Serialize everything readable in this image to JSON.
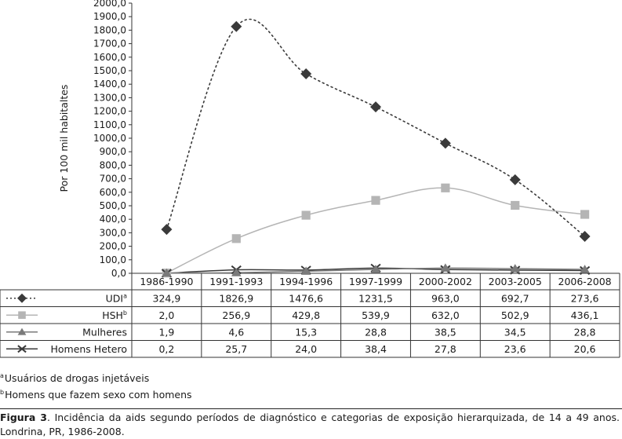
{
  "chart_data": {
    "type": "line",
    "ylabel": "Por 100 mil habitaltes",
    "ylim": [
      0,
      2000
    ],
    "yticks": [
      "0,0",
      "100,0",
      "200,0",
      "300,0",
      "400,0",
      "500,0",
      "600,0",
      "700,0",
      "800,0",
      "900,0",
      "1000,0",
      "1100,0",
      "1200,0",
      "1300,0",
      "1400,0",
      "1500,0",
      "1600,0",
      "1700,0",
      "1800,0",
      "1900,0",
      "2000,0"
    ],
    "categories": [
      "1986-1990",
      "1991-1993",
      "1994-1996",
      "1997-1999",
      "2000-2002",
      "2003-2005",
      "2006-2008"
    ],
    "series": [
      {
        "name": "UDI",
        "superscript": "a",
        "values": [
          324.9,
          1826.9,
          1476.6,
          1231.5,
          963.0,
          692.7,
          273.6
        ],
        "labels": [
          "324,9",
          "1826,9",
          "1476,6",
          "1231,5",
          "963,0",
          "692,7",
          "273,6"
        ],
        "color": "#3a3a3a",
        "line": "dotted",
        "marker": "diamond"
      },
      {
        "name": "HSH",
        "superscript": "b",
        "values": [
          2.0,
          256.9,
          429.8,
          539.9,
          632.0,
          502.9,
          436.1
        ],
        "labels": [
          "2,0",
          "256,9",
          "429,8",
          "539,9",
          "632,0",
          "502,9",
          "436,1"
        ],
        "color": "#b5b5b5",
        "line": "solid",
        "marker": "square"
      },
      {
        "name": "Mulheres",
        "superscript": "",
        "values": [
          1.9,
          4.6,
          15.3,
          28.8,
          38.5,
          34.5,
          28.8
        ],
        "labels": [
          "1,9",
          "4,6",
          "15,3",
          "28,8",
          "38,5",
          "34,5",
          "28,8"
        ],
        "color": "#7a7a7a",
        "line": "solid",
        "marker": "triangle"
      },
      {
        "name": "Homens Hetero",
        "superscript": "",
        "values": [
          0.2,
          25.7,
          24.0,
          38.4,
          27.8,
          23.6,
          20.6
        ],
        "labels": [
          "0,2",
          "25,7",
          "24,0",
          "38,4",
          "27,8",
          "23,6",
          "20,6"
        ],
        "color": "#3a3a3a",
        "line": "solid",
        "marker": "x"
      }
    ],
    "grid": false,
    "legend": "left table rows"
  },
  "footnotes": [
    {
      "mark": "a",
      "text": "Usuários de drogas injetáveis"
    },
    {
      "mark": "b",
      "text": "Homens que fazem sexo com homens"
    }
  ],
  "caption": {
    "label": "Figura 3",
    "text": ". Incidência da aids segundo períodos de diagnóstico e categorias de exposição hierarquizada, de 14 a 49 anos. Londrina, PR, 1986-2008."
  }
}
